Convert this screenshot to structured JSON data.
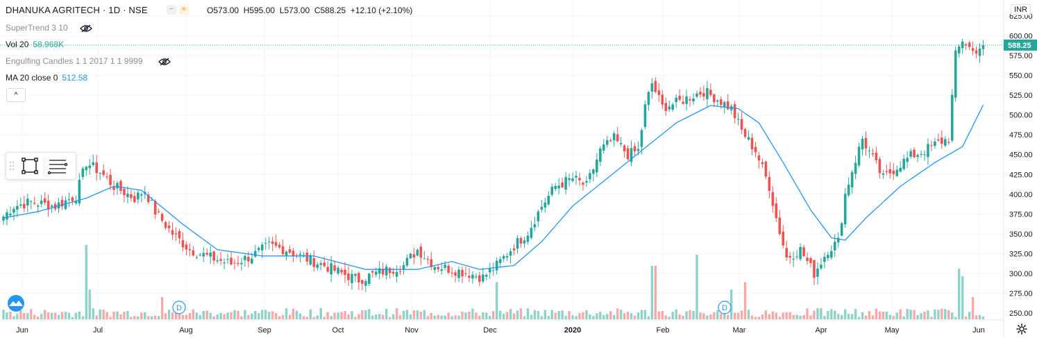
{
  "header": {
    "symbol": "DHANUKA AGRITECH",
    "interval": "1D",
    "exchange": "NSE",
    "title_line": "DHANUKA AGRITECH · 1D · NSE",
    "open": "O573.00",
    "high": "H595.00",
    "low": "L573.00",
    "close": "C588.25",
    "change": "+12.10 (+2.10%)"
  },
  "indicators": {
    "supertrend": "SuperTrend 3 10",
    "vol_label": "Vol 20",
    "vol_value": "58.968K",
    "engulfing": "Engulfing Candles 1 1 2017 1 1 9999",
    "ma_label": "MA 20 close 0",
    "ma_value": "512.58",
    "collapse_glyph": "^"
  },
  "price_axis": {
    "currency": "INR",
    "ticks": [
      "625.00",
      "600.00",
      "575.00",
      "550.00",
      "525.00",
      "500.00",
      "475.00",
      "450.00",
      "425.00",
      "400.00",
      "375.00",
      "350.00",
      "325.00",
      "300.00",
      "275.00",
      "250.00"
    ],
    "last_price": "588.25"
  },
  "time_axis": {
    "labels": [
      "Jun",
      "Jul",
      "Aug",
      "Sep",
      "Oct",
      "Nov",
      "Dec",
      "2020",
      "Feb",
      "Mar",
      "Apr",
      "May",
      "Jun"
    ]
  },
  "dividend_markers": [
    "D",
    "D"
  ],
  "colors": {
    "up": "#26a69a",
    "down": "#ef5350",
    "ma": "#2196f3",
    "up_volume": "#8fd2c8",
    "down_volume": "#f7a9a7",
    "last_price_line": "#26a69a"
  },
  "icons": {
    "compare": "compare-icon",
    "eye_hidden": "eye-crossed-icon",
    "rectangle_tool": "rectangle-icon",
    "lines_tool": "horizontal-lines-icon",
    "logo": "tradingview-logo-icon",
    "settings": "gear-icon"
  },
  "chart_data": {
    "type": "candlestick",
    "title": "DHANUKA AGRITECH · 1D · NSE",
    "y_range": [
      240,
      630
    ],
    "x_labels": [
      "Jun",
      "Jul",
      "Aug",
      "Sep",
      "Oct",
      "Nov",
      "Dec",
      "2020",
      "Feb",
      "Mar",
      "Apr",
      "May",
      "Jun"
    ],
    "anchors": [
      {
        "i": 0,
        "c": 372
      },
      {
        "i": 3,
        "c": 385
      },
      {
        "i": 8,
        "c": 390
      },
      {
        "i": 15,
        "c": 385
      },
      {
        "i": 21,
        "c": 398
      },
      {
        "i": 24,
        "c": 440
      },
      {
        "i": 28,
        "c": 428
      },
      {
        "i": 32,
        "c": 410
      },
      {
        "i": 38,
        "c": 395
      },
      {
        "i": 41,
        "c": 405
      },
      {
        "i": 44,
        "c": 378
      },
      {
        "i": 49,
        "c": 350
      },
      {
        "i": 54,
        "c": 330
      },
      {
        "i": 60,
        "c": 320
      },
      {
        "i": 66,
        "c": 312
      },
      {
        "i": 72,
        "c": 322
      },
      {
        "i": 77,
        "c": 335
      },
      {
        "i": 82,
        "c": 330
      },
      {
        "i": 87,
        "c": 320
      },
      {
        "i": 93,
        "c": 310
      },
      {
        "i": 98,
        "c": 300
      },
      {
        "i": 103,
        "c": 292
      },
      {
        "i": 108,
        "c": 300
      },
      {
        "i": 112,
        "c": 305
      },
      {
        "i": 116,
        "c": 310
      },
      {
        "i": 120,
        "c": 330
      },
      {
        "i": 125,
        "c": 310
      },
      {
        "i": 130,
        "c": 305
      },
      {
        "i": 135,
        "c": 300
      },
      {
        "i": 139,
        "c": 295
      },
      {
        "i": 143,
        "c": 310
      },
      {
        "i": 148,
        "c": 335
      },
      {
        "i": 152,
        "c": 352
      },
      {
        "i": 156,
        "c": 385
      },
      {
        "i": 160,
        "c": 410
      },
      {
        "i": 165,
        "c": 420
      },
      {
        "i": 169,
        "c": 410
      },
      {
        "i": 173,
        "c": 455
      },
      {
        "i": 177,
        "c": 470
      },
      {
        "i": 181,
        "c": 450
      },
      {
        "i": 184,
        "c": 455
      },
      {
        "i": 186,
        "c": 510
      },
      {
        "i": 188,
        "c": 540
      },
      {
        "i": 191,
        "c": 510
      },
      {
        "i": 195,
        "c": 515
      },
      {
        "i": 200,
        "c": 525
      },
      {
        "i": 203,
        "c": 530
      },
      {
        "i": 207,
        "c": 520
      },
      {
        "i": 211,
        "c": 508
      },
      {
        "i": 214,
        "c": 480
      },
      {
        "i": 218,
        "c": 455
      },
      {
        "i": 222,
        "c": 410
      },
      {
        "i": 224,
        "c": 370
      },
      {
        "i": 227,
        "c": 320
      },
      {
        "i": 231,
        "c": 330
      },
      {
        "i": 235,
        "c": 300
      },
      {
        "i": 239,
        "c": 330
      },
      {
        "i": 242,
        "c": 340
      },
      {
        "i": 244,
        "c": 400
      },
      {
        "i": 246,
        "c": 430
      },
      {
        "i": 249,
        "c": 470
      },
      {
        "i": 252,
        "c": 445
      },
      {
        "i": 255,
        "c": 420
      },
      {
        "i": 259,
        "c": 435
      },
      {
        "i": 263,
        "c": 448
      },
      {
        "i": 267,
        "c": 455
      },
      {
        "i": 271,
        "c": 465
      },
      {
        "i": 274,
        "c": 470
      },
      {
        "i": 276,
        "c": 575
      },
      {
        "i": 278,
        "c": 595
      },
      {
        "i": 281,
        "c": 580
      },
      {
        "i": 284,
        "c": 588.25
      }
    ],
    "ma_anchors": [
      {
        "i": 0,
        "v": 370
      },
      {
        "i": 10,
        "v": 378
      },
      {
        "i": 24,
        "v": 395
      },
      {
        "i": 32,
        "v": 410
      },
      {
        "i": 40,
        "v": 405
      },
      {
        "i": 52,
        "v": 362
      },
      {
        "i": 62,
        "v": 330
      },
      {
        "i": 75,
        "v": 322
      },
      {
        "i": 90,
        "v": 322
      },
      {
        "i": 105,
        "v": 305
      },
      {
        "i": 120,
        "v": 305
      },
      {
        "i": 130,
        "v": 315
      },
      {
        "i": 138,
        "v": 305
      },
      {
        "i": 148,
        "v": 310
      },
      {
        "i": 156,
        "v": 340
      },
      {
        "i": 165,
        "v": 385
      },
      {
        "i": 175,
        "v": 420
      },
      {
        "i": 185,
        "v": 455
      },
      {
        "i": 195,
        "v": 490
      },
      {
        "i": 205,
        "v": 512
      },
      {
        "i": 213,
        "v": 508
      },
      {
        "i": 219,
        "v": 490
      },
      {
        "i": 226,
        "v": 440
      },
      {
        "i": 234,
        "v": 380
      },
      {
        "i": 240,
        "v": 345
      },
      {
        "i": 244,
        "v": 342
      },
      {
        "i": 250,
        "v": 370
      },
      {
        "i": 260,
        "v": 410
      },
      {
        "i": 270,
        "v": 440
      },
      {
        "i": 278,
        "v": 460
      },
      {
        "i": 284,
        "v": 512.58
      }
    ],
    "last_price": 588.25,
    "volume_spikes": [
      {
        "i": 24,
        "v": 1.0
      },
      {
        "i": 25,
        "v": 0.4
      },
      {
        "i": 46,
        "v": 0.3
      },
      {
        "i": 143,
        "v": 0.5
      },
      {
        "i": 188,
        "v": 0.72
      },
      {
        "i": 189,
        "v": 0.72
      },
      {
        "i": 201,
        "v": 0.87
      },
      {
        "i": 211,
        "v": 0.4
      },
      {
        "i": 215,
        "v": 0.5
      },
      {
        "i": 277,
        "v": 0.68
      },
      {
        "i": 278,
        "v": 0.58
      },
      {
        "i": 281,
        "v": 0.3
      }
    ]
  }
}
